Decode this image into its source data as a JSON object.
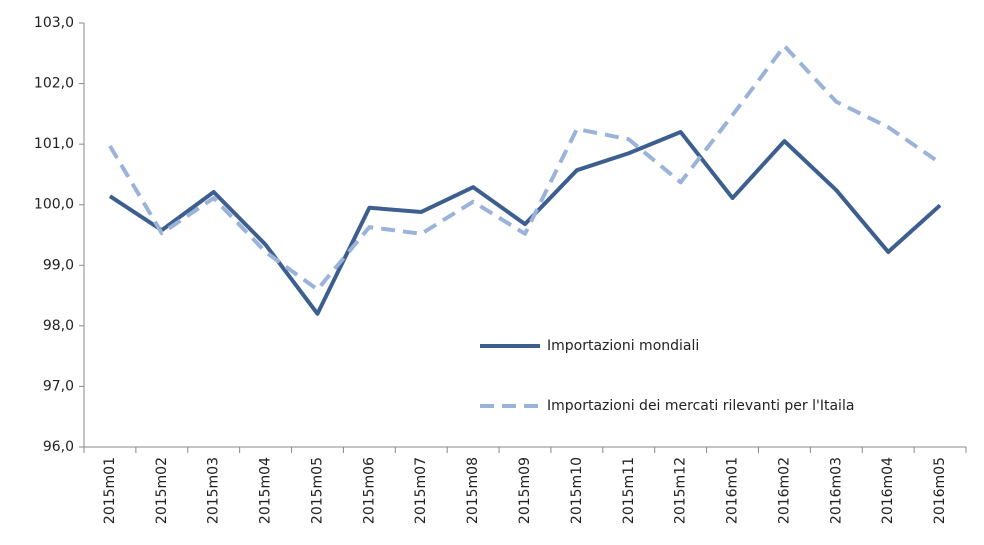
{
  "chart_data": {
    "type": "line",
    "categories": [
      "2015m01",
      "2015m02",
      "2015m03",
      "2015m04",
      "2015m05",
      "2015m06",
      "2015m07",
      "2015m08",
      "2015m09",
      "2015m10",
      "2015m11",
      "2015m12",
      "2016m01",
      "2016m02",
      "2016m03",
      "2016m04",
      "2016m05"
    ],
    "series": [
      {
        "name": "Importazioni mondiali",
        "color": "#3d5f8f",
        "line_style": "solid",
        "values": [
          100.14,
          99.58,
          100.21,
          99.34,
          98.2,
          99.95,
          99.88,
          100.29,
          99.68,
          100.57,
          100.85,
          101.2,
          100.11,
          101.05,
          100.24,
          99.22,
          99.99
        ]
      },
      {
        "name": "Importazioni dei mercati rilevanti per l'Itaila",
        "color": "#9bb3d9",
        "line_style": "dashed",
        "values": [
          100.97,
          99.53,
          100.11,
          99.22,
          98.6,
          99.63,
          99.52,
          100.05,
          99.52,
          101.25,
          101.08,
          100.37,
          101.48,
          102.62,
          101.7,
          101.28,
          100.69
        ]
      }
    ],
    "ylim": [
      96,
      103
    ],
    "yticks": [
      {
        "value": 96,
        "label": "96,0"
      },
      {
        "value": 97,
        "label": "97,0"
      },
      {
        "value": 98,
        "label": "98,0"
      },
      {
        "value": 99,
        "label": "99,0"
      },
      {
        "value": 100,
        "label": "100,0"
      },
      {
        "value": 101,
        "label": "101,0"
      },
      {
        "value": 102,
        "label": "102,0"
      },
      {
        "value": 103,
        "label": "103,0"
      }
    ],
    "legend": "lower-right"
  }
}
